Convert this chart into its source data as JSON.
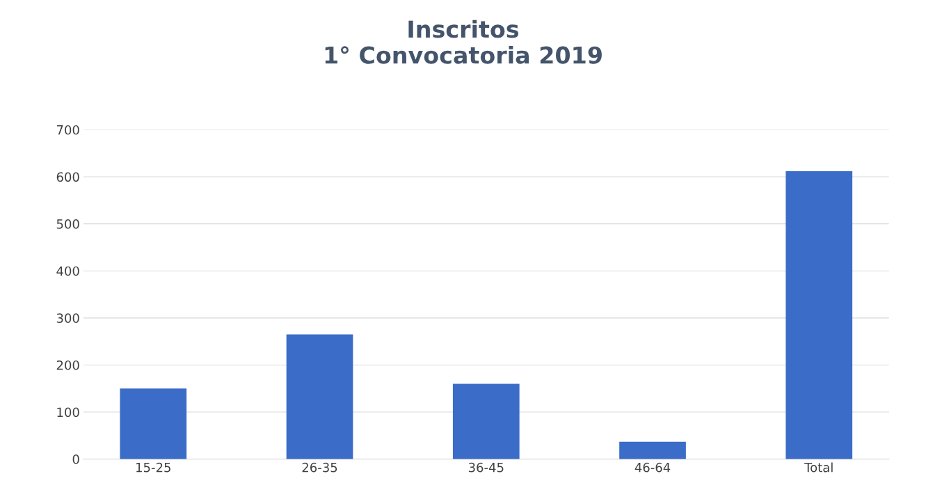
{
  "chart_data": {
    "type": "bar",
    "title": "Inscritos\n1° Convocatoria 2019",
    "categories": [
      "15-25",
      "26-35",
      "36-45",
      "46-64",
      "Total"
    ],
    "values": [
      150,
      265,
      160,
      37,
      612
    ],
    "color": "#3a6cc8",
    "ylim": [
      0,
      700
    ],
    "yticks": [
      0,
      100,
      200,
      300,
      400,
      500,
      600,
      700
    ],
    "grid": "y"
  }
}
